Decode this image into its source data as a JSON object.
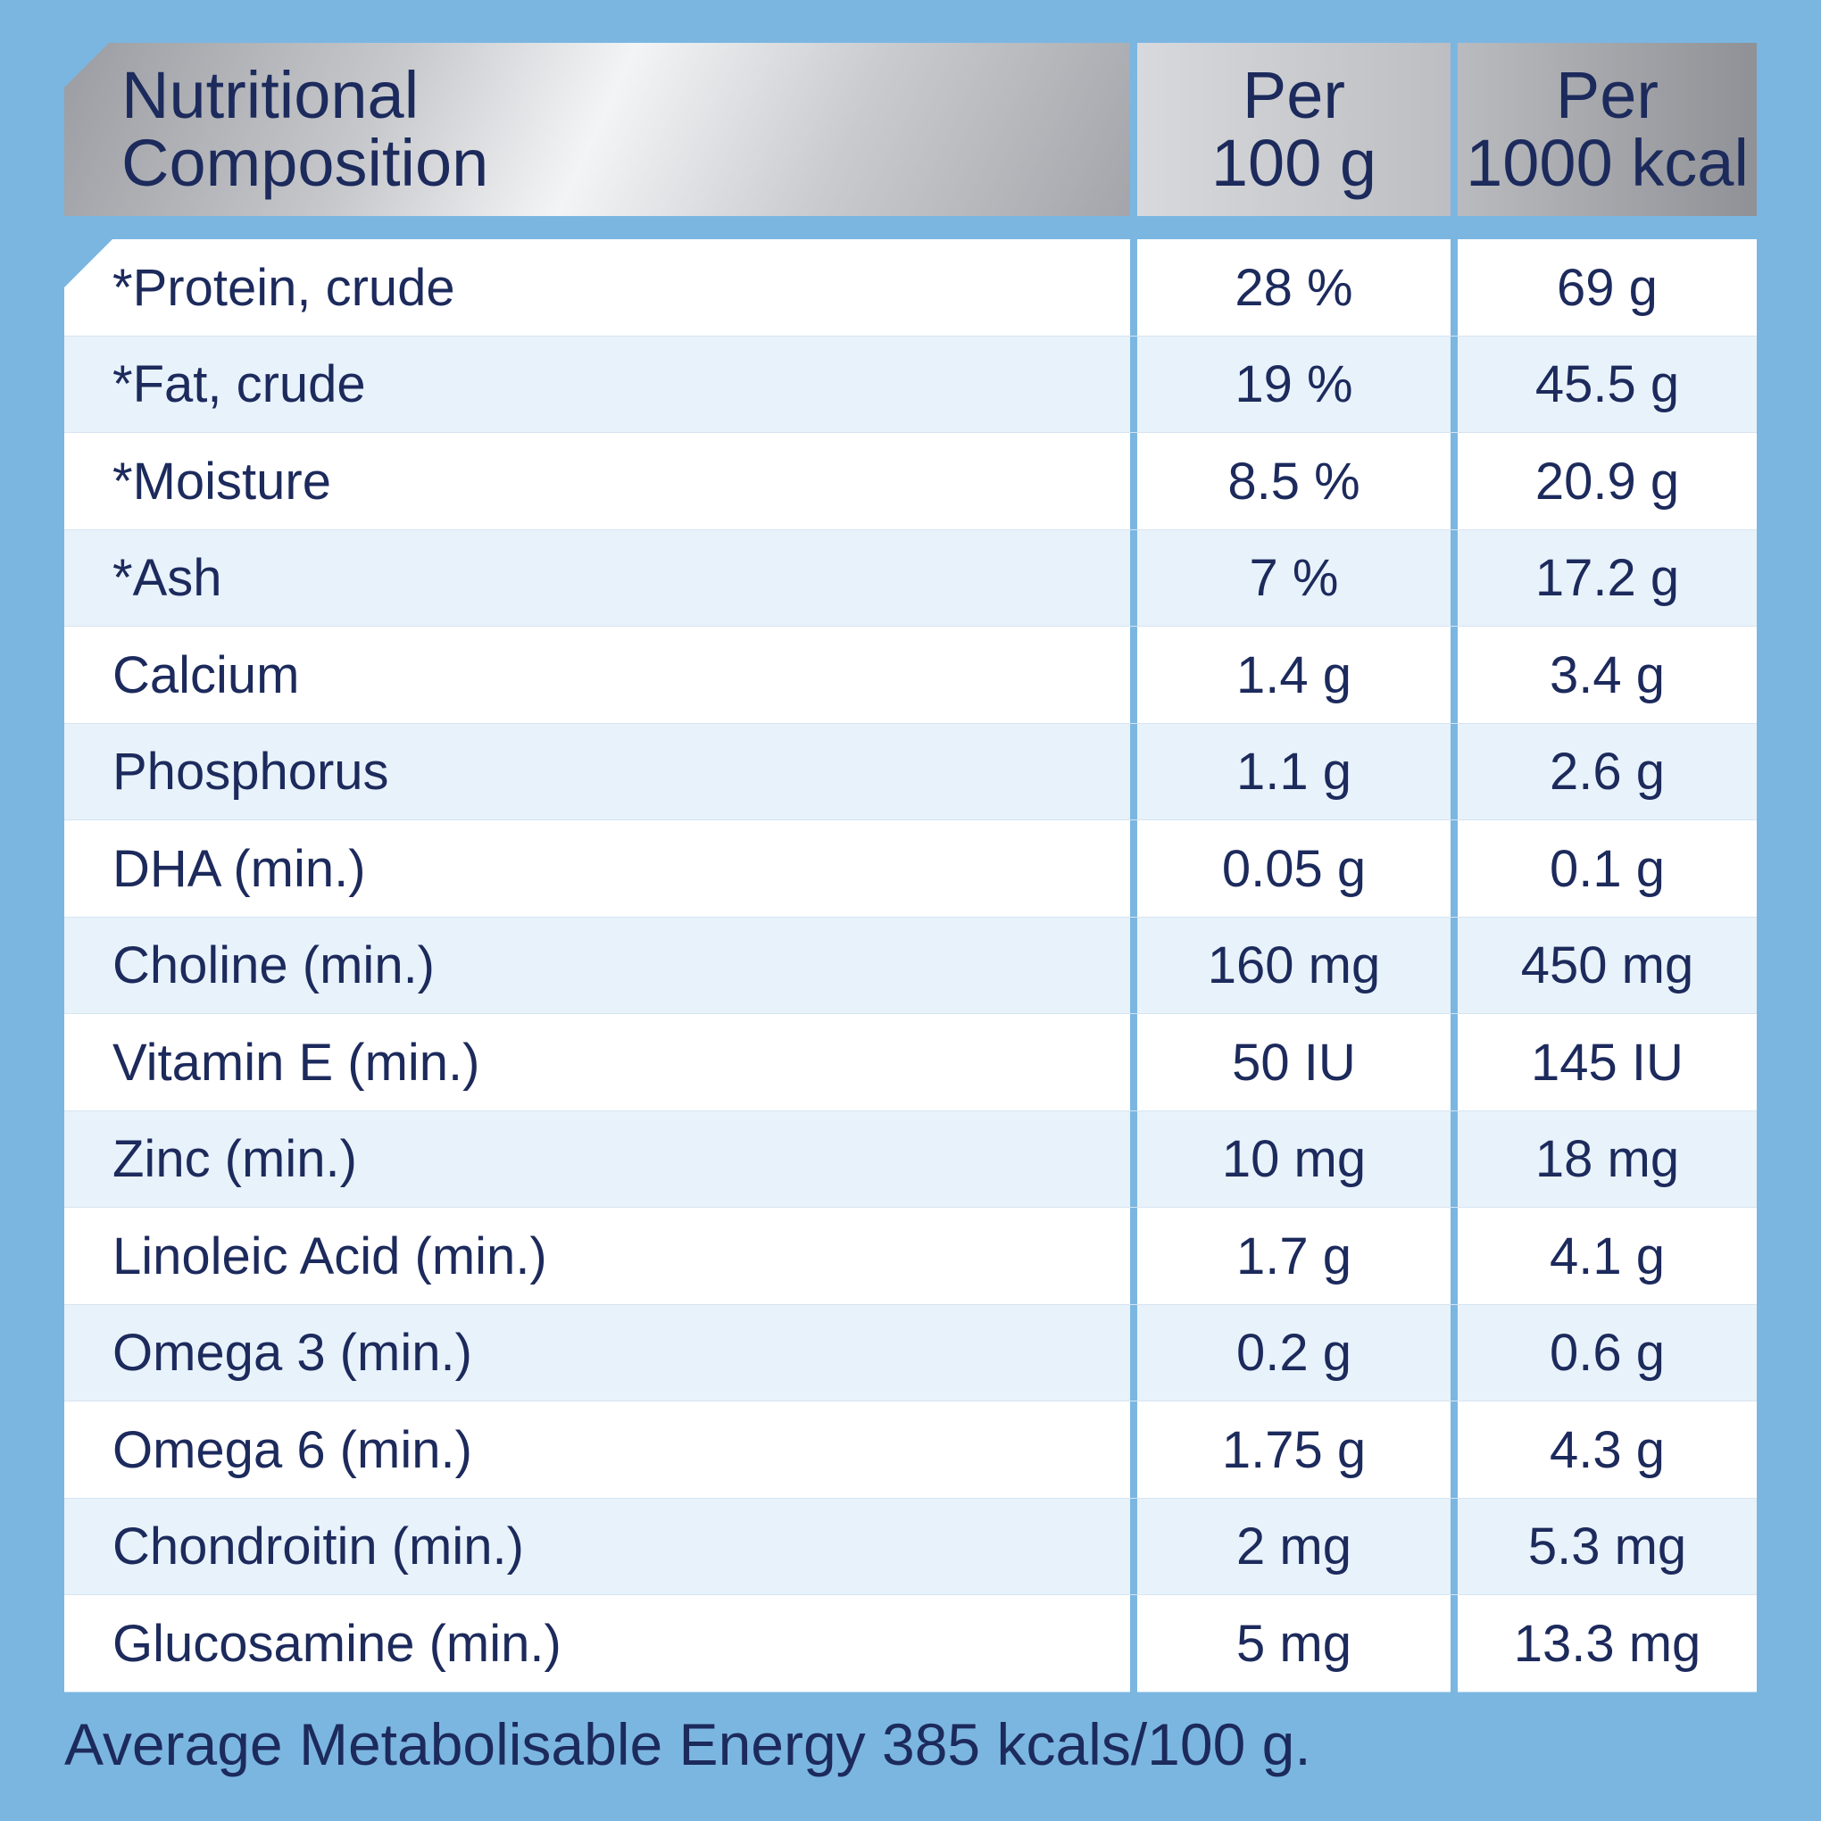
{
  "header": {
    "name": "Nutritional\nComposition",
    "col1": "Per\n100 g",
    "col2": "Per\n1000 kcal"
  },
  "rows": [
    {
      "name": "*Protein, crude",
      "per100g": "28 %",
      "per1000kcal": "69 g"
    },
    {
      "name": "*Fat, crude",
      "per100g": "19 %",
      "per1000kcal": "45.5 g"
    },
    {
      "name": "*Moisture",
      "per100g": "8.5 %",
      "per1000kcal": "20.9 g"
    },
    {
      "name": "*Ash",
      "per100g": "7 %",
      "per1000kcal": "17.2 g"
    },
    {
      "name": "Calcium",
      "per100g": "1.4 g",
      "per1000kcal": "3.4 g"
    },
    {
      "name": "Phosphorus",
      "per100g": "1.1 g",
      "per1000kcal": "2.6 g"
    },
    {
      "name": "DHA (min.)",
      "per100g": "0.05 g",
      "per1000kcal": "0.1 g"
    },
    {
      "name": "Choline (min.)",
      "per100g": "160 mg",
      "per1000kcal": "450 mg"
    },
    {
      "name": "Vitamin E (min.)",
      "per100g": "50 IU",
      "per1000kcal": "145 IU"
    },
    {
      "name": "Zinc (min.)",
      "per100g": "10 mg",
      "per1000kcal": "18 mg"
    },
    {
      "name": "Linoleic Acid (min.)",
      "per100g": "1.7 g",
      "per1000kcal": "4.1 g"
    },
    {
      "name": "Omega 3 (min.)",
      "per100g": "0.2 g",
      "per1000kcal": "0.6 g"
    },
    {
      "name": "Omega 6 (min.)",
      "per100g": "1.75 g",
      "per1000kcal": "4.3 g"
    },
    {
      "name": "Chondroitin (min.)",
      "per100g": "2 mg",
      "per1000kcal": "5.3 mg"
    },
    {
      "name": "Glucosamine (min.)",
      "per100g": "5 mg",
      "per1000kcal": "13.3 mg"
    }
  ],
  "footer": "Average Metabolisable Energy 385 kcals/100 g.",
  "colors": {
    "background": "#7bb6e1",
    "text": "#1c2a5c",
    "row_alt": "#e8f2fb",
    "row": "#ffffff"
  }
}
